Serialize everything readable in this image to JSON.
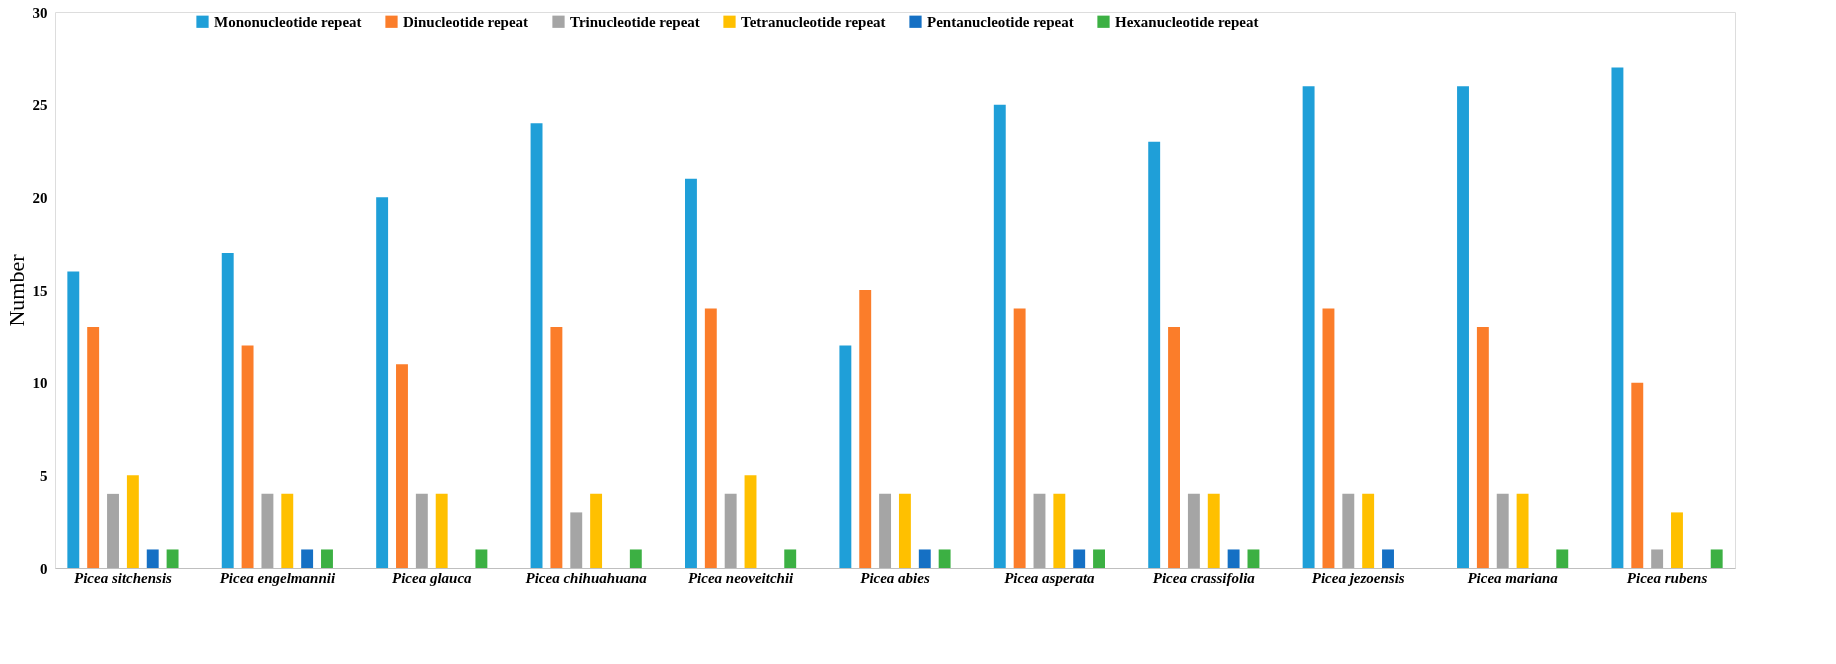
{
  "chart_data": {
    "type": "bar",
    "ylabel": "Number",
    "categories": [
      "Picea sitchensis",
      "Picea engelmannii",
      "Picea glauca",
      "Picea chihuahuana",
      "Picea neoveitchii",
      "Picea abies",
      "Picea asperata",
      "Picea crassifolia",
      "Picea jezoensis",
      "Picea mariana",
      "Picea rubens"
    ],
    "series": [
      {
        "name": "Mononucleotide repeat",
        "color": "#1f9fd8",
        "values": [
          16,
          17,
          20,
          24,
          21,
          12,
          25,
          23,
          26,
          26,
          27
        ]
      },
      {
        "name": "Dinucleotide repeat",
        "color": "#fb7d2a",
        "values": [
          13,
          12,
          11,
          13,
          14,
          15,
          14,
          13,
          14,
          13,
          10
        ]
      },
      {
        "name": "Trinucleotide repeat",
        "color": "#a5a5a5",
        "values": [
          4,
          4,
          4,
          3,
          4,
          4,
          4,
          4,
          4,
          4,
          1
        ]
      },
      {
        "name": "Tetranucleotide repeat",
        "color": "#ffc000",
        "values": [
          5,
          4,
          4,
          4,
          5,
          4,
          4,
          4,
          4,
          4,
          3
        ]
      },
      {
        "name": "Pentanucleotide repeat",
        "color": "#1570c4",
        "values": [
          1,
          1,
          0,
          0,
          0,
          1,
          1,
          1,
          1,
          0,
          0
        ]
      },
      {
        "name": "Hexanucleotide repeat",
        "color": "#3cb043",
        "values": [
          1,
          1,
          1,
          1,
          1,
          1,
          1,
          1,
          0,
          1,
          1
        ]
      }
    ],
    "ylim": [
      0,
      30
    ],
    "yticks": [
      0,
      5,
      10,
      15,
      20,
      25,
      30
    ],
    "grid": false,
    "legend": "top"
  }
}
